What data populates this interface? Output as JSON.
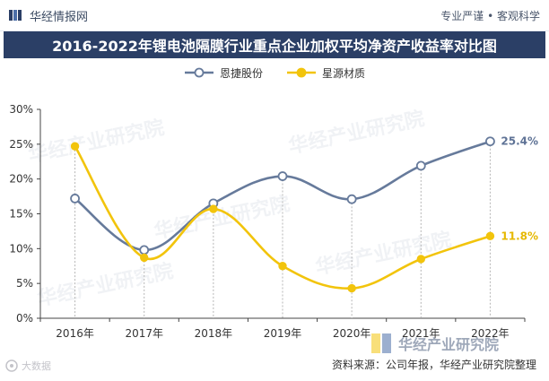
{
  "header": {
    "brand": "华经情报网",
    "slogan": "专业严谨 • 客观科学"
  },
  "chart_data": {
    "type": "line",
    "title": "2016-2022年锂电池隔膜行业重点企业加权平均净资产收益率对比图",
    "categories": [
      "2016年",
      "2017年",
      "2018年",
      "2019年",
      "2020年",
      "2021年",
      "2022年"
    ],
    "y_ticks": [
      "0%",
      "5%",
      "10%",
      "15%",
      "20%",
      "25%",
      "30%"
    ],
    "ylim": [
      0,
      30
    ],
    "grid": false,
    "legend_position": "top-center",
    "series": [
      {
        "name": "恩捷股份",
        "values": [
          17.2,
          9.8,
          16.5,
          20.4,
          17.1,
          21.9,
          25.4
        ],
        "color": "#667a9b",
        "marker": "circle",
        "end_label": "25.4%"
      },
      {
        "name": "星源材质",
        "values": [
          24.7,
          8.7,
          15.7,
          7.5,
          4.3,
          8.5,
          11.8
        ],
        "color": "#f2c40c",
        "marker": "circle",
        "end_label": "11.8%"
      }
    ]
  },
  "watermarks": [
    "华经产业研究院",
    "华经产业研究院",
    "华经产业研究院",
    "华经产业研究院",
    "华经产业研究院"
  ],
  "footer": {
    "logo_text": "大数据",
    "source": "资料来源：公司年报，华经产业研究院整理",
    "stamp": "华经产业研究院"
  }
}
